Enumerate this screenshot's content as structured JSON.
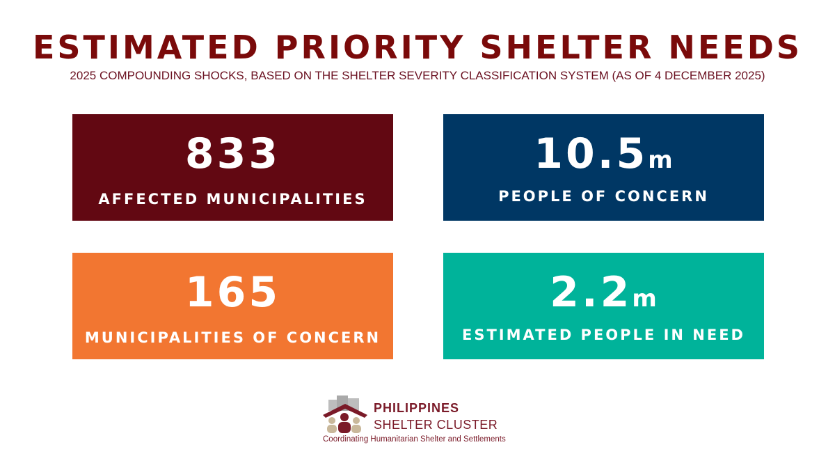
{
  "colors": {
    "title": "#7a0a0a",
    "card1": "#620812",
    "card2": "#003764",
    "card3": "#f27631",
    "card4": "#00b39a",
    "logo": "#7a1a28"
  },
  "header": {
    "title": "ESTIMATED PRIORITY SHELTER NEEDS",
    "subtitle": "2025 COMPOUNDING SHOCKS, BASED ON THE SHELTER SEVERITY CLASSIFICATION SYSTEM (AS OF 4 DECEMBER 2025)"
  },
  "cards": [
    {
      "value": "833",
      "unit": "",
      "label": "AFFECTED MUNICIPALITIES"
    },
    {
      "value": "10.5",
      "unit": "m",
      "label": "PEOPLE OF CONCERN"
    },
    {
      "value": "165",
      "unit": "",
      "label": "MUNICIPALITIES OF CONCERN"
    },
    {
      "value": "2.2",
      "unit": "m",
      "label": "ESTIMATED PEOPLE IN NEED"
    }
  ],
  "logo": {
    "line1": "PHILIPPINES",
    "line2": "SHELTER CLUSTER",
    "tagline": "Coordinating Humanitarian Shelter and Settlements",
    "icon": "shelter-roof-people-icon"
  }
}
